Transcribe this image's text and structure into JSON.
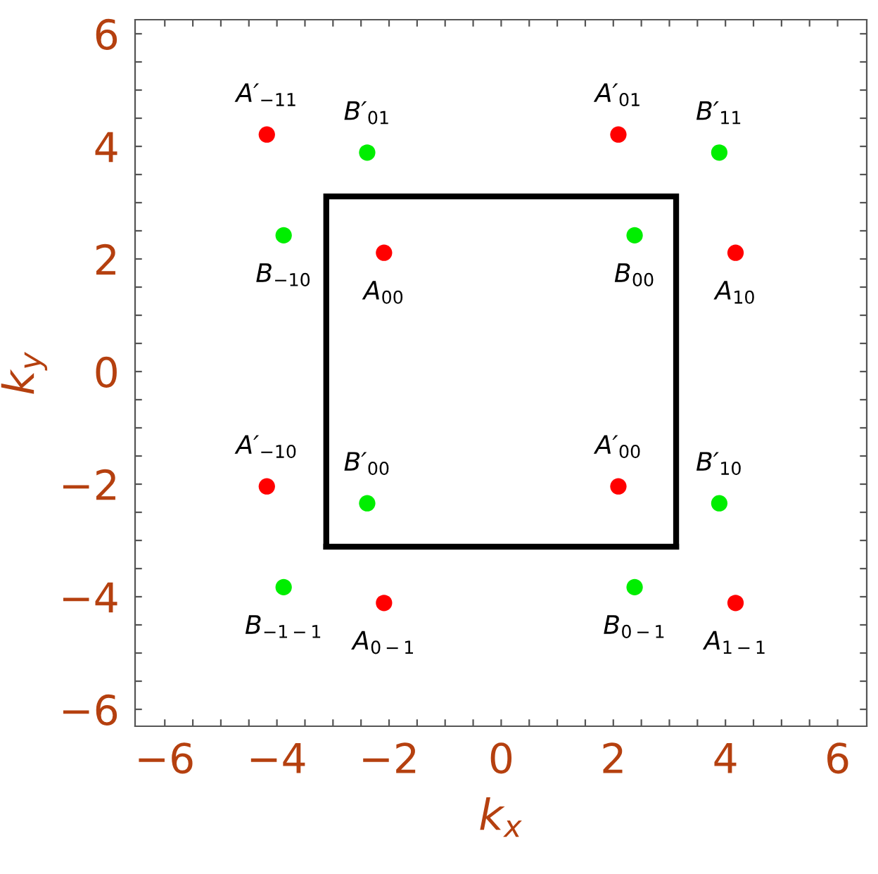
{
  "chart_data": {
    "type": "scatter",
    "xlabel": "k$_{x}$",
    "ylabel": "k$_{y}$",
    "xlim": [
      -6.53,
      6.52
    ],
    "ylim": [
      -6.3,
      6.25
    ],
    "xticks": [
      -6,
      {
        "value": -5.5,
        "label": null
      },
      {
        "value": -5,
        "label": null
      },
      {
        "value": -4.5,
        "label": null
      },
      -4,
      {
        "value": -3.5,
        "label": null
      },
      {
        "value": -3,
        "label": null
      },
      {
        "value": -2.5,
        "label": null
      },
      -2,
      {
        "value": -1.5,
        "label": null
      },
      {
        "value": -1,
        "label": null
      },
      {
        "value": -0.5,
        "label": null
      },
      0,
      {
        "value": 0.5,
        "label": null
      },
      {
        "value": 1,
        "label": null
      },
      {
        "value": 1.5,
        "label": null
      },
      2,
      {
        "value": 2.5,
        "label": null
      },
      {
        "value": 3,
        "label": null
      },
      {
        "value": 3.5,
        "label": null
      },
      4,
      {
        "value": 4.5,
        "label": null
      },
      {
        "value": 5,
        "label": null
      },
      {
        "value": 5.5,
        "label": null
      },
      6
    ],
    "yticks": [
      -6,
      {
        "value": -5.5,
        "label": null
      },
      {
        "value": -5,
        "label": null
      },
      {
        "value": -4.5,
        "label": null
      },
      -4,
      {
        "value": -3.5,
        "label": null
      },
      {
        "value": -3,
        "label": null
      },
      {
        "value": -2.5,
        "label": null
      },
      -2,
      {
        "value": -1.5,
        "label": null
      },
      {
        "value": -1,
        "label": null
      },
      {
        "value": -0.5,
        "label": null
      },
      0,
      {
        "value": 0.5,
        "label": null
      },
      {
        "value": 1,
        "label": null
      },
      {
        "value": 1.5,
        "label": null
      },
      2,
      {
        "value": 2.5,
        "label": null
      },
      {
        "value": 3,
        "label": null
      },
      {
        "value": 3.5,
        "label": null
      },
      4,
      {
        "value": 4.5,
        "label": null
      },
      {
        "value": 5,
        "label": null
      },
      {
        "value": 5.5,
        "label": null
      },
      6
    ],
    "grid": false,
    "legend": false,
    "marker": "circle",
    "series": [
      {
        "type": "line",
        "marker": "none",
        "color": "#000000",
        "x": [
          -3.12,
          -3.12,
          3.12,
          3.12
        ],
        "values": [
          -3.11,
          3.11,
          3.11,
          -3.11
        ]
      },
      {
        "type": "line",
        "marker": "none",
        "color": "#000000",
        "x": [
          -3.12,
          3.12
        ],
        "values": [
          -3.11,
          -3.11
        ]
      },
      {
        "color": "#ff0000",
        "x": [
          -4.18,
          2.09,
          -2.09,
          4.18,
          -4.18,
          2.09,
          -2.09,
          4.18
        ],
        "values": [
          4.21,
          4.21,
          2.11,
          2.11,
          -2.04,
          -2.04,
          -4.11,
          -4.11
        ]
      },
      {
        "color": "#00ee00",
        "x": [
          -2.39,
          3.89,
          -3.88,
          2.38,
          -2.39,
          3.89,
          -3.88,
          2.38
        ],
        "values": [
          3.89,
          3.89,
          2.42,
          2.42,
          -2.34,
          -2.34,
          -3.83,
          -3.83
        ]
      }
    ],
    "annotations": [
      {
        "text": "A′$_{−11}$",
        "x": -4.18,
        "y": 4.21
      },
      {
        "text": "B′$_{01}$",
        "x": -2.39,
        "y": 3.89
      },
      {
        "text": "B$_{−10}$",
        "x": -3.88,
        "y": 2.42
      },
      {
        "text": "A$_{00}$",
        "x": -2.09,
        "y": 2.11
      },
      {
        "text": "A′$_{01}$",
        "x": 2.09,
        "y": 4.21
      },
      {
        "text": "B′$_{11}$",
        "x": 3.89,
        "y": 3.89
      },
      {
        "text": "B$_{00}$",
        "x": 2.38,
        "y": 2.42
      },
      {
        "text": "A$_{10}$",
        "x": 4.18,
        "y": 2.11
      },
      {
        "text": "A′$_{−10}$",
        "x": -4.18,
        "y": -2.04
      },
      {
        "text": "B′$_{00}$",
        "x": -2.39,
        "y": -2.34
      },
      {
        "text": "B$_{−1−1}$",
        "x": -3.88,
        "y": -3.83
      },
      {
        "text": "A$_{0−1}$",
        "x": -2.09,
        "y": -4.11
      },
      {
        "text": "A′$_{00}$",
        "x": 2.09,
        "y": -2.04
      },
      {
        "text": "B′$_{10}$",
        "x": 3.89,
        "y": -2.34
      },
      {
        "text": "B$_{0−1}$",
        "x": 2.38,
        "y": -3.83
      },
      {
        "text": "A$_{1−1}$",
        "x": 4.18,
        "y": -4.11
      }
    ]
  }
}
